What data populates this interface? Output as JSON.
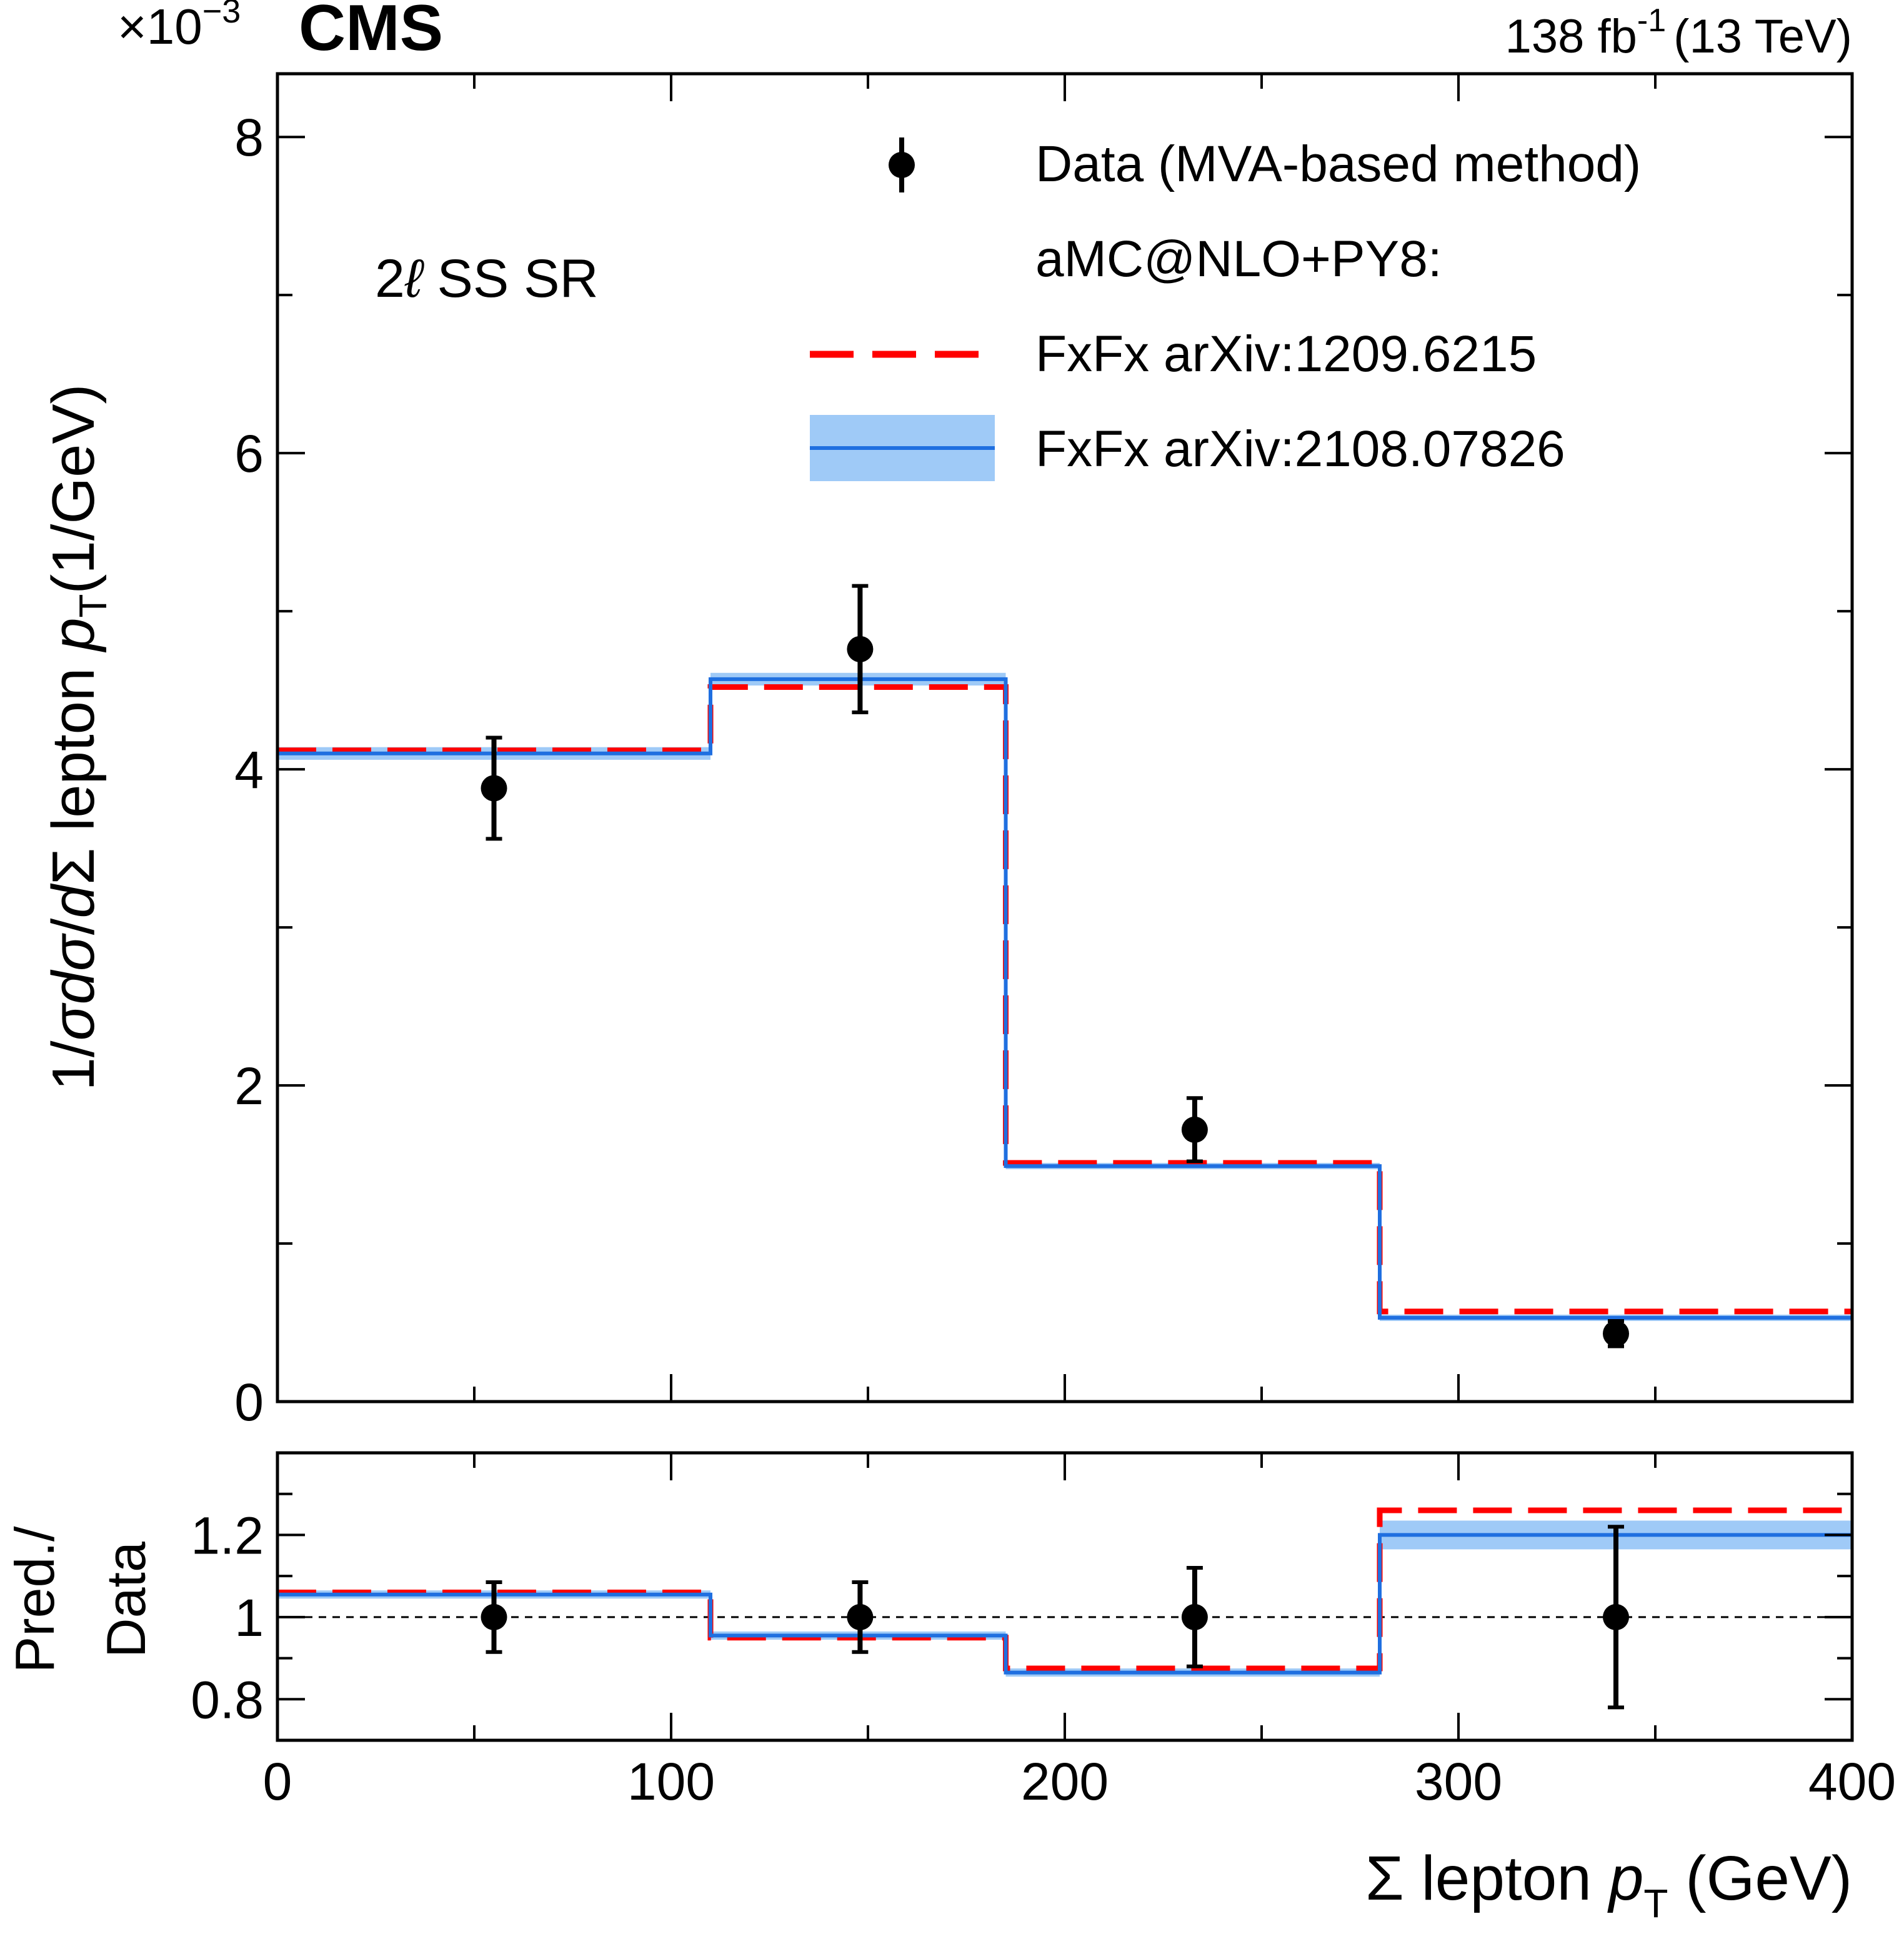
{
  "header": {
    "experiment": "CMS",
    "scale_prefix": "×10",
    "scale_exp": "−3",
    "lumi_value": "138 fb",
    "lumi_exp": "-1",
    "energy": "(13 TeV)"
  },
  "region_label": {
    "prefix": "2",
    "ell": "ℓ",
    "suffix": " SS SR"
  },
  "legend": {
    "data": "Data (MVA-based method)",
    "generator_header": "aMC@NLO+PY8:",
    "pred1": "FxFx arXiv:1209.6215",
    "pred2": "FxFx arXiv:2108.07826"
  },
  "axes": {
    "ylabel_main": {
      "a": "1/",
      "b": "σ",
      "c": "d",
      "d": "σ",
      "e": "/",
      "f": "d",
      "g": "Σ lepton ",
      "h": "p",
      "sub": "T",
      "i": "(1/GeV)"
    },
    "ylabel_ratio_line1": "Pred./",
    "ylabel_ratio_line2": "Data",
    "xlabel": {
      "a": "Σ lepton ",
      "b": "p",
      "sub": "T",
      "c": " (GeV)"
    }
  },
  "colors": {
    "data": "#000000",
    "pred1": "#ff0000",
    "pred2": "#1f6fe0",
    "pred2_band": "#9fcaf7"
  },
  "chart_data": [
    {
      "type": "histogram-step",
      "panel": "main",
      "title": "CMS",
      "xlim": [
        0,
        400
      ],
      "ylim": [
        0,
        8.4
      ],
      "y_scale_label": "×10^-3",
      "x_ticks": [
        0,
        100,
        200,
        300,
        400
      ],
      "x_tick_labels": [
        "0",
        "100",
        "200",
        "300",
        "400"
      ],
      "y_ticks": [
        0,
        2,
        4,
        6,
        8
      ],
      "y_tick_labels": [
        "0",
        "2",
        "4",
        "6",
        "8"
      ],
      "bin_edges": [
        0,
        110,
        185,
        280,
        400
      ],
      "series": [
        {
          "name": "FxFx arXiv:1209.6215",
          "style": "dashed",
          "values": [
            4.12,
            4.52,
            1.51,
            0.57
          ]
        },
        {
          "name": "FxFx arXiv:2108.07826",
          "style": "solid",
          "values": [
            4.1,
            4.57,
            1.49,
            0.53
          ],
          "band_halfwidth": [
            0.04,
            0.04,
            0.02,
            0.02
          ]
        }
      ],
      "data": {
        "name": "Data (MVA-based method)",
        "x": [
          55,
          148,
          233,
          340
        ],
        "y": [
          3.88,
          4.76,
          1.72,
          0.43
        ],
        "err_lo": [
          0.32,
          0.4,
          0.2,
          0.08
        ],
        "err_hi": [
          0.32,
          0.4,
          0.2,
          0.08
        ]
      }
    },
    {
      "type": "histogram-step",
      "panel": "ratio",
      "xlim": [
        0,
        400
      ],
      "ylim": [
        0.7,
        1.4
      ],
      "y_ticks": [
        0.8,
        1.0,
        1.2
      ],
      "y_tick_labels": [
        "0.8",
        "1",
        "1.2"
      ],
      "reference_line": 1.0,
      "bin_edges": [
        0,
        110,
        185,
        280,
        400
      ],
      "series": [
        {
          "name": "FxFx arXiv:1209.6215",
          "style": "dashed",
          "values": [
            1.06,
            0.95,
            0.875,
            1.26
          ]
        },
        {
          "name": "FxFx arXiv:2108.07826",
          "style": "solid",
          "values": [
            1.055,
            0.955,
            0.865,
            1.2
          ],
          "band_halfwidth": [
            0.01,
            0.01,
            0.01,
            0.035
          ]
        }
      ],
      "data": {
        "x": [
          55,
          148,
          233,
          340
        ],
        "y": [
          1.0,
          1.0,
          1.0,
          1.0
        ],
        "err_lo": [
          0.085,
          0.085,
          0.12,
          0.22
        ],
        "err_hi": [
          0.085,
          0.085,
          0.12,
          0.22
        ]
      }
    }
  ]
}
